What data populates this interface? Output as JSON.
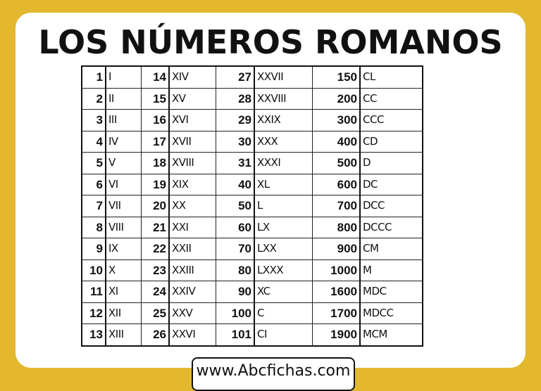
{
  "title": "LOS NÚMEROS ROMANOS",
  "footer": "www.Abcfichas.com",
  "colors": {
    "background": "#e3b82f",
    "card": "#ffffff"
  },
  "rows": [
    [
      [
        "1",
        "I"
      ],
      [
        "14",
        "XIV"
      ],
      [
        "27",
        "XXVII"
      ],
      [
        "150",
        "CL"
      ]
    ],
    [
      [
        "2",
        "II"
      ],
      [
        "15",
        "XV"
      ],
      [
        "28",
        "XXVIII"
      ],
      [
        "200",
        "CC"
      ]
    ],
    [
      [
        "3",
        "III"
      ],
      [
        "16",
        "XVI"
      ],
      [
        "29",
        "XXIX"
      ],
      [
        "300",
        "CCC"
      ]
    ],
    [
      [
        "4",
        "IV"
      ],
      [
        "17",
        "XVII"
      ],
      [
        "30",
        "XXX"
      ],
      [
        "400",
        "CD"
      ]
    ],
    [
      [
        "5",
        "V"
      ],
      [
        "18",
        "XVIII"
      ],
      [
        "31",
        "XXXI"
      ],
      [
        "500",
        "D"
      ]
    ],
    [
      [
        "6",
        "VI"
      ],
      [
        "19",
        "XIX"
      ],
      [
        "40",
        "XL"
      ],
      [
        "600",
        "DC"
      ]
    ],
    [
      [
        "7",
        "VII"
      ],
      [
        "20",
        "XX"
      ],
      [
        "50",
        "L"
      ],
      [
        "700",
        "DCC"
      ]
    ],
    [
      [
        "8",
        "VIII"
      ],
      [
        "21",
        "XXI"
      ],
      [
        "60",
        "LX"
      ],
      [
        "800",
        "DCCC"
      ]
    ],
    [
      [
        "9",
        "IX"
      ],
      [
        "22",
        "XXII"
      ],
      [
        "70",
        "LXX"
      ],
      [
        "900",
        "CM"
      ]
    ],
    [
      [
        "10",
        "X"
      ],
      [
        "23",
        "XXIII"
      ],
      [
        "80",
        "LXXX"
      ],
      [
        "1000",
        "M"
      ]
    ],
    [
      [
        "11",
        "XI"
      ],
      [
        "24",
        "XXIV"
      ],
      [
        "90",
        "XC"
      ],
      [
        "1600",
        "MDC"
      ]
    ],
    [
      [
        "12",
        "XII"
      ],
      [
        "25",
        "XXV"
      ],
      [
        "100",
        "C"
      ],
      [
        "1700",
        "MDCC"
      ]
    ],
    [
      [
        "13",
        "XIII"
      ],
      [
        "26",
        "XXVI"
      ],
      [
        "101",
        "CI"
      ],
      [
        "1900",
        "MCM"
      ]
    ]
  ]
}
